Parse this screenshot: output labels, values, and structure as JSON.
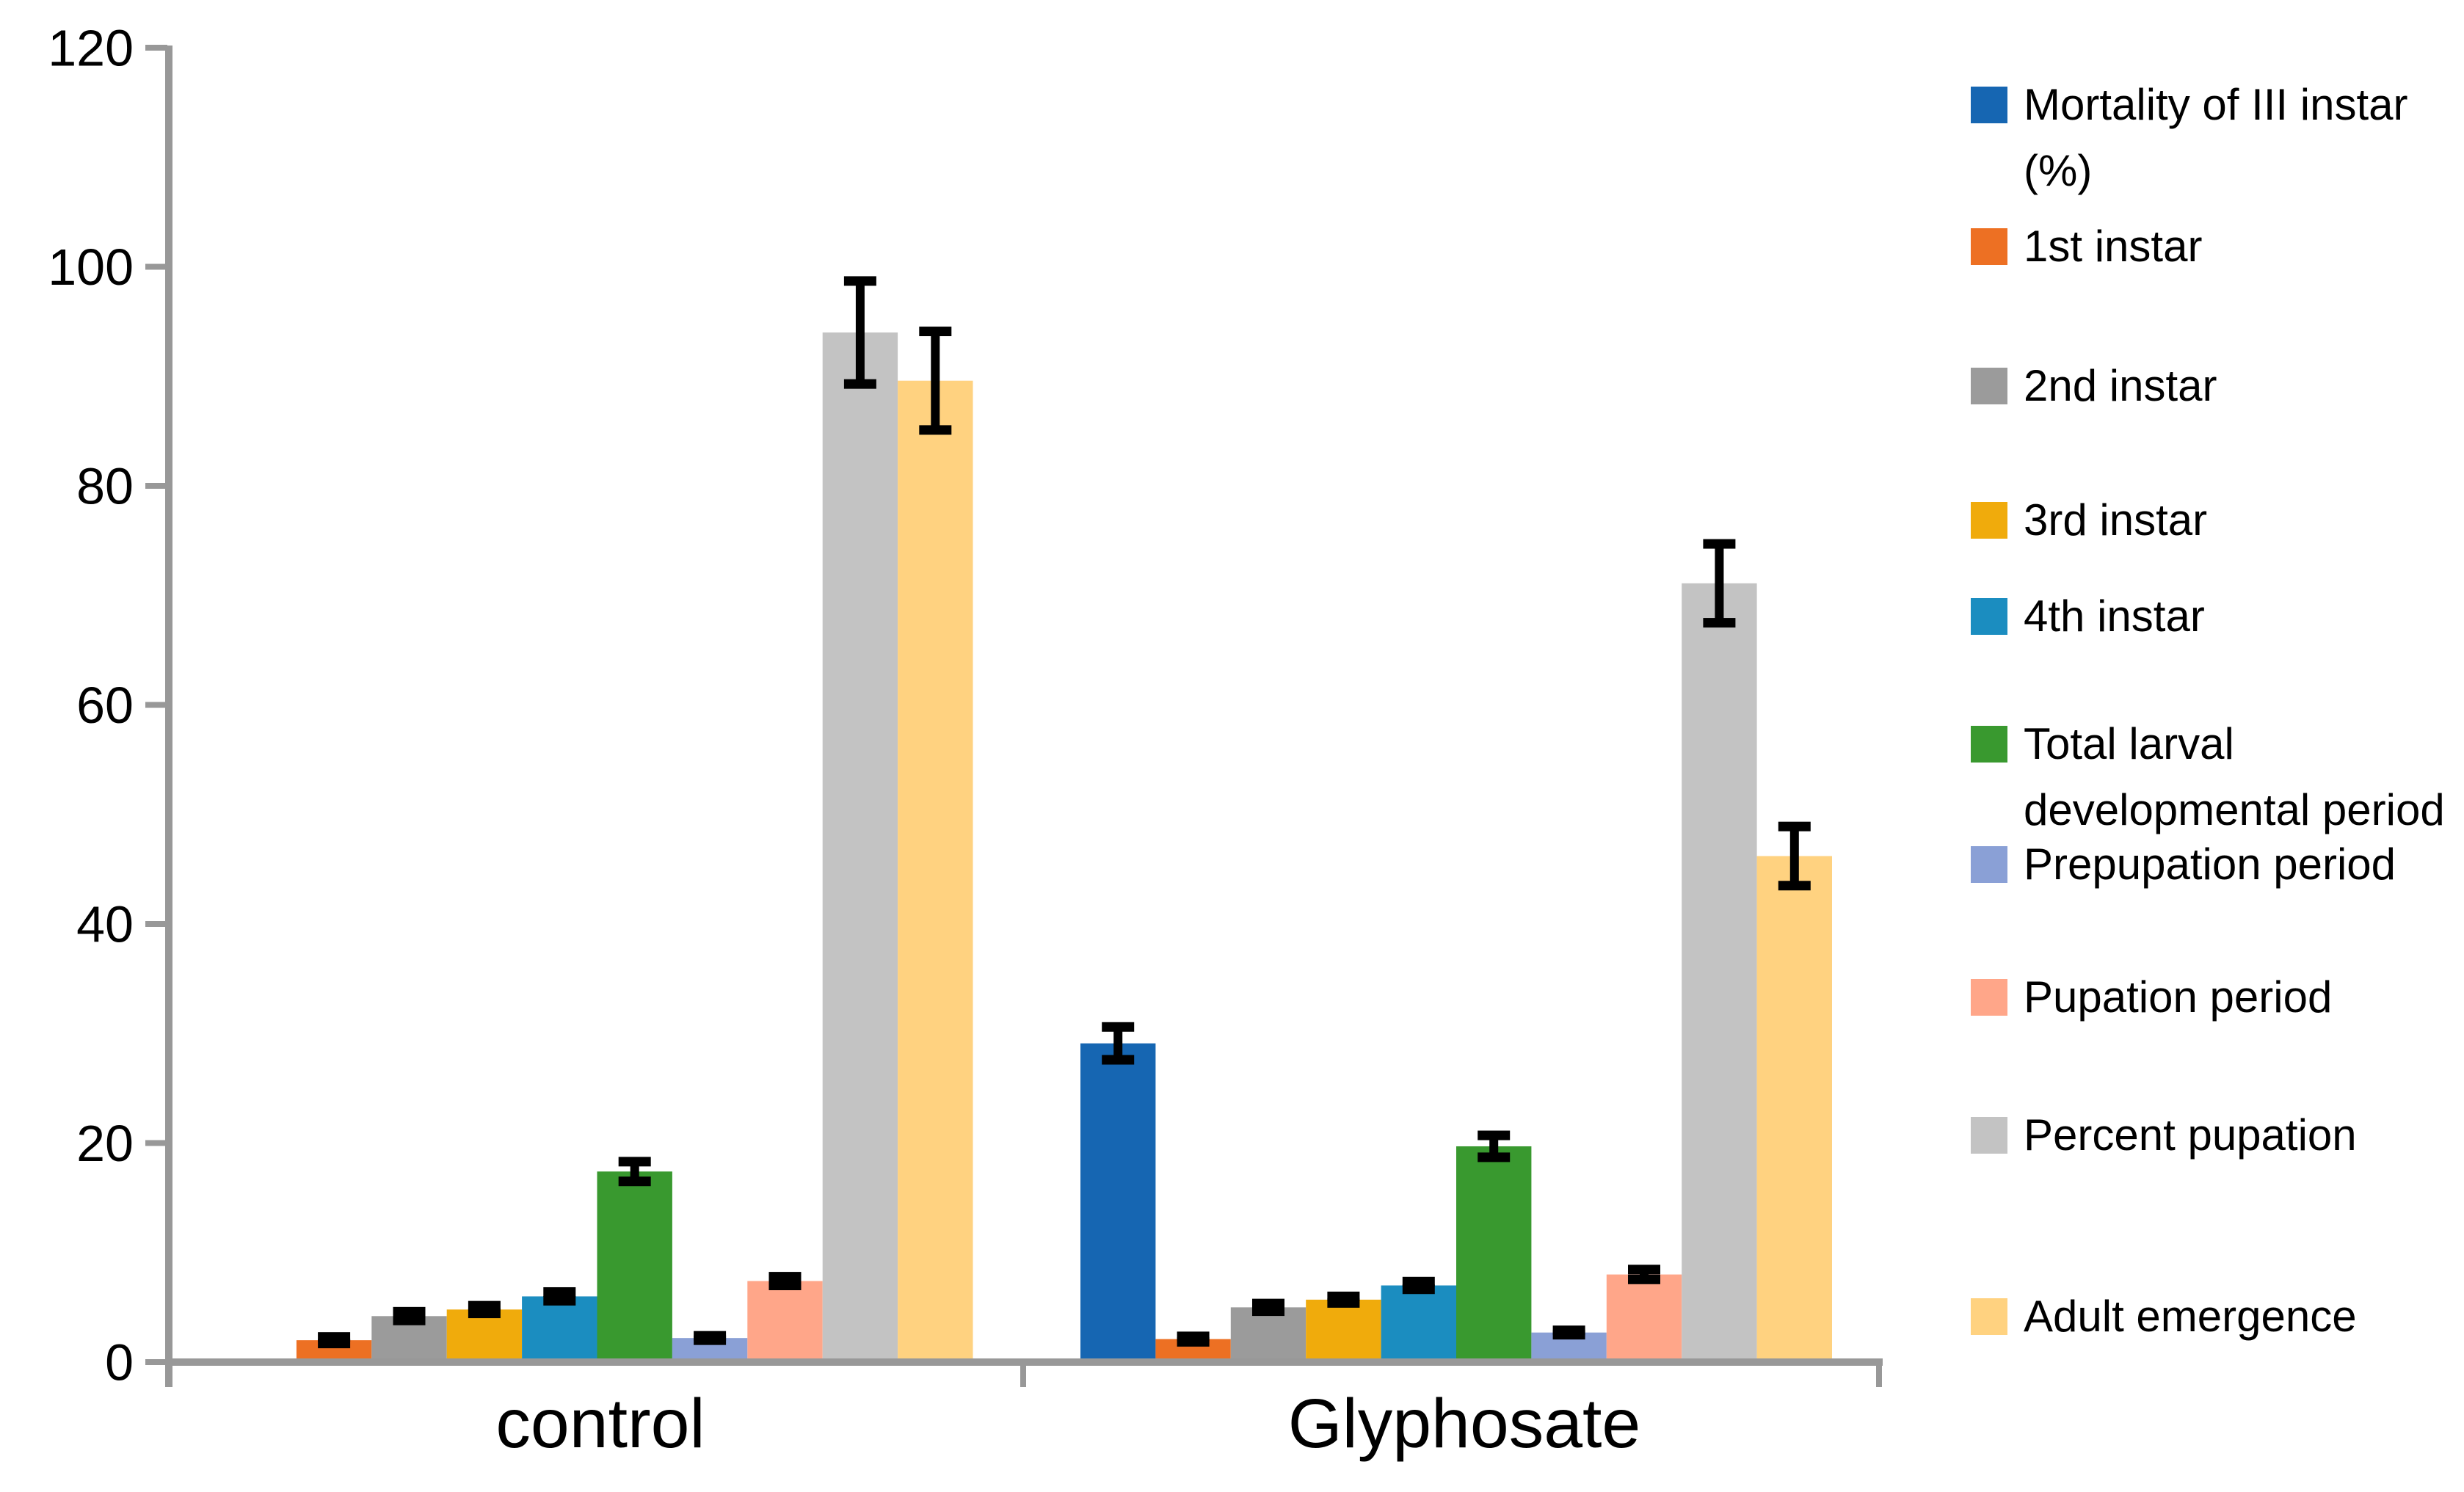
{
  "chart_data": {
    "type": "bar",
    "title": "",
    "categories": [
      "control",
      "Glyphosate"
    ],
    "series": [
      {
        "name": "Mortality of III instar\n(%)",
        "color": "#1666b2",
        "values": [
          0,
          29.1
        ],
        "errors": [
          0,
          1.5
        ]
      },
      {
        "name": "1st instar",
        "color": "#ed7023",
        "values": [
          2.0,
          2.1
        ],
        "errors": [
          0.3,
          0.25
        ]
      },
      {
        "name": "2nd instar",
        "color": "#9b9b9b",
        "values": [
          4.2,
          5.0
        ],
        "errors": [
          0.4,
          0.35
        ]
      },
      {
        "name": "3rd instar",
        "color": "#f0ab0c",
        "values": [
          4.8,
          5.7
        ],
        "errors": [
          0.35,
          0.3
        ]
      },
      {
        "name": "4th instar",
        "color": "#1b8dc0",
        "values": [
          6.0,
          7.0
        ],
        "errors": [
          0.4,
          0.35
        ]
      },
      {
        "name": "Total larval\ndevelopmental period",
        "color": "#39992f",
        "values": [
          17.4,
          19.7
        ],
        "errors": [
          0.9,
          1.0
        ]
      },
      {
        "name": "Prepupation period",
        "color": "#8aa0d6",
        "values": [
          2.2,
          2.7
        ],
        "errors": [
          0.2,
          0.2
        ]
      },
      {
        "name": "Pupation period",
        "color": "#ffa689",
        "values": [
          7.4,
          8.0
        ],
        "errors": [
          0.4,
          0.45
        ]
      },
      {
        "name": "Percent pupation",
        "color": "#c3c3c3",
        "values": [
          94.0,
          71.1
        ],
        "errors": [
          4.7,
          3.6
        ]
      },
      {
        "name": "Adult emergence",
        "color": "#ffd280",
        "values": [
          89.6,
          46.2
        ],
        "errors": [
          4.5,
          2.7
        ]
      }
    ],
    "y_axis": {
      "min": 0,
      "max": 120,
      "step": 20,
      "tick_labels": [
        "0",
        "20",
        "40",
        "60",
        "80",
        "100",
        "120"
      ]
    },
    "x_tick_labels": [
      "control",
      "Glyphosate"
    ],
    "legend_position": "right",
    "grid": false,
    "error_bars": true
  },
  "colors": {
    "axis": "#989898",
    "error_bar": "#000000",
    "text": "#000000",
    "background": "#ffffff"
  }
}
